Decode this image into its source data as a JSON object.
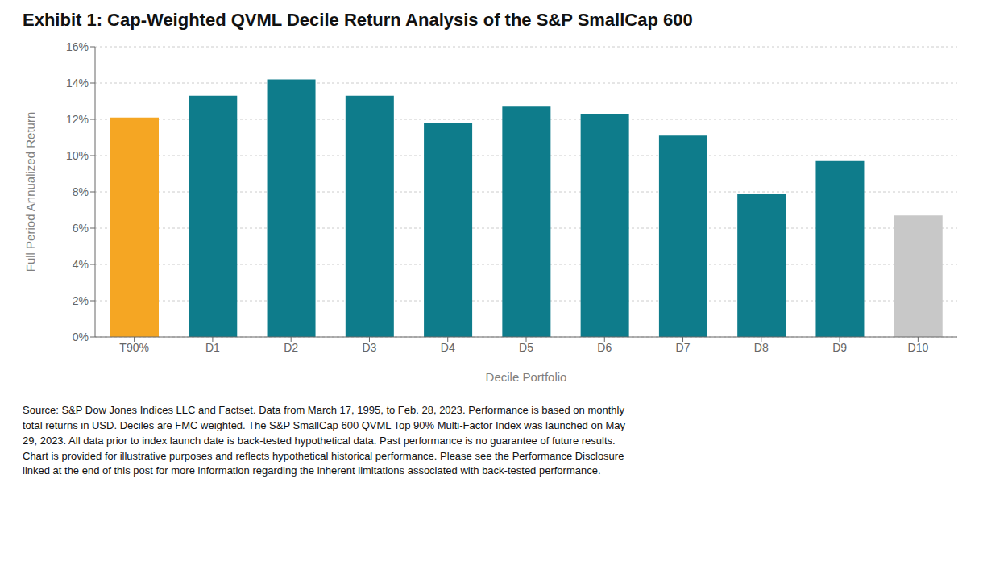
{
  "chart_data": {
    "type": "bar",
    "title": "Exhibit 1: Cap-Weighted QVML Decile Return Analysis of the S&P SmallCap 600",
    "categories": [
      "T90%",
      "D1",
      "D2",
      "D3",
      "D4",
      "D5",
      "D6",
      "D7",
      "D8",
      "D9",
      "D10"
    ],
    "values": [
      0.121,
      0.133,
      0.142,
      0.133,
      0.118,
      0.127,
      0.123,
      0.111,
      0.079,
      0.097,
      0.067
    ],
    "colors": [
      "#F5A623",
      "#0E7C8B",
      "#0E7C8B",
      "#0E7C8B",
      "#0E7C8B",
      "#0E7C8B",
      "#0E7C8B",
      "#0E7C8B",
      "#0E7C8B",
      "#0E7C8B",
      "#C8C8C8"
    ],
    "xlabel": "Decile Portfolio",
    "ylabel": "Full Period Annualized Return",
    "ylim": [
      0,
      0.16
    ],
    "yticks": [
      {
        "value": 0,
        "label": "0%"
      },
      {
        "value": 0.02,
        "label": "2%"
      },
      {
        "value": 0.04,
        "label": "4%"
      },
      {
        "value": 0.06,
        "label": "6%"
      },
      {
        "value": 0.08,
        "label": "8%"
      },
      {
        "value": 0.1,
        "label": "10%"
      },
      {
        "value": 0.12,
        "label": "12%"
      },
      {
        "value": 0.14,
        "label": "14%"
      },
      {
        "value": 0.16,
        "label": "16%"
      }
    ],
    "grid": true,
    "annotations": [
      "Source: S&P Dow Jones Indices LLC and Factset. Data from March 17, 1995, to Feb. 28, 2023. Performance is based on monthly",
      "total returns in USD. Deciles are FMC weighted. The S&P SmallCap 600 QVML Top 90% Multi-Factor Index was launched on May",
      "29, 2023. All data prior to index launch date is back-tested hypothetical data. Past performance is no guarantee of future results.",
      "Chart is provided for illustrative purposes and reflects hypothetical historical performance. Please see the Performance Disclosure",
      "linked at the end of this post for more information regarding the inherent limitations associated with back-tested performance."
    ]
  }
}
